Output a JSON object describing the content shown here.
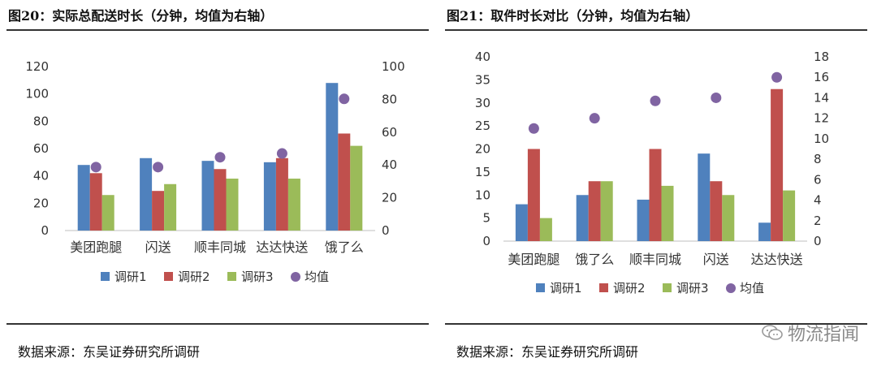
{
  "panels": [
    {
      "title": "图20：实际总配送时长（分钟，均值为右轴）",
      "source": "数据来源：东吴证券研究所调研"
    },
    {
      "title": "图21：取件时长对比（分钟，均值为右轴）",
      "source": "数据来源：东吴证券研究所调研"
    }
  ],
  "watermark": {
    "text": "物流指闻",
    "icon": "wechat-icon"
  },
  "colors": {
    "s1": "#4F81BD",
    "s2": "#C0504D",
    "s3": "#9BBB59",
    "mean": "#8064A2"
  },
  "chart_data": [
    {
      "type": "bar",
      "categories": [
        "美团跑腿",
        "闪送",
        "顺丰同城",
        "达达快送",
        "饿了么"
      ],
      "series": [
        {
          "name": "调研1",
          "axis": "left",
          "values": [
            48,
            53,
            51,
            50,
            108
          ]
        },
        {
          "name": "调研2",
          "axis": "left",
          "values": [
            42,
            29,
            45,
            53,
            71
          ]
        },
        {
          "name": "调研3",
          "axis": "left",
          "values": [
            26,
            34,
            38,
            38,
            62
          ]
        },
        {
          "name": "均值",
          "axis": "right",
          "marker": "dot",
          "values": [
            38.7,
            38.7,
            44.7,
            47,
            80.3
          ]
        }
      ],
      "ylim": [
        0,
        120
      ],
      "yticks": [
        0,
        20,
        40,
        60,
        80,
        100,
        120
      ],
      "y2lim": [
        0,
        100
      ],
      "y2ticks": [
        0,
        20,
        40,
        60,
        80,
        100
      ],
      "legend": "bottom",
      "grid": false
    },
    {
      "type": "bar",
      "categories": [
        "美团跑腿",
        "饿了么",
        "顺丰同城",
        "闪送",
        "达达快送"
      ],
      "series": [
        {
          "name": "调研1",
          "axis": "left",
          "values": [
            8,
            10,
            9,
            19,
            4
          ]
        },
        {
          "name": "调研2",
          "axis": "left",
          "values": [
            20,
            13,
            20,
            13,
            33
          ]
        },
        {
          "name": "调研3",
          "axis": "left",
          "values": [
            5,
            13,
            12,
            10,
            11
          ]
        },
        {
          "name": "均值",
          "axis": "right",
          "marker": "dot",
          "values": [
            11,
            12,
            13.7,
            14,
            16
          ]
        }
      ],
      "ylim": [
        0,
        40
      ],
      "yticks": [
        0,
        5,
        10,
        15,
        20,
        25,
        30,
        35,
        40
      ],
      "y2lim": [
        0,
        18
      ],
      "y2ticks": [
        0,
        2,
        4,
        6,
        8,
        10,
        12,
        14,
        16,
        18
      ],
      "legend": "bottom",
      "grid": false
    }
  ]
}
